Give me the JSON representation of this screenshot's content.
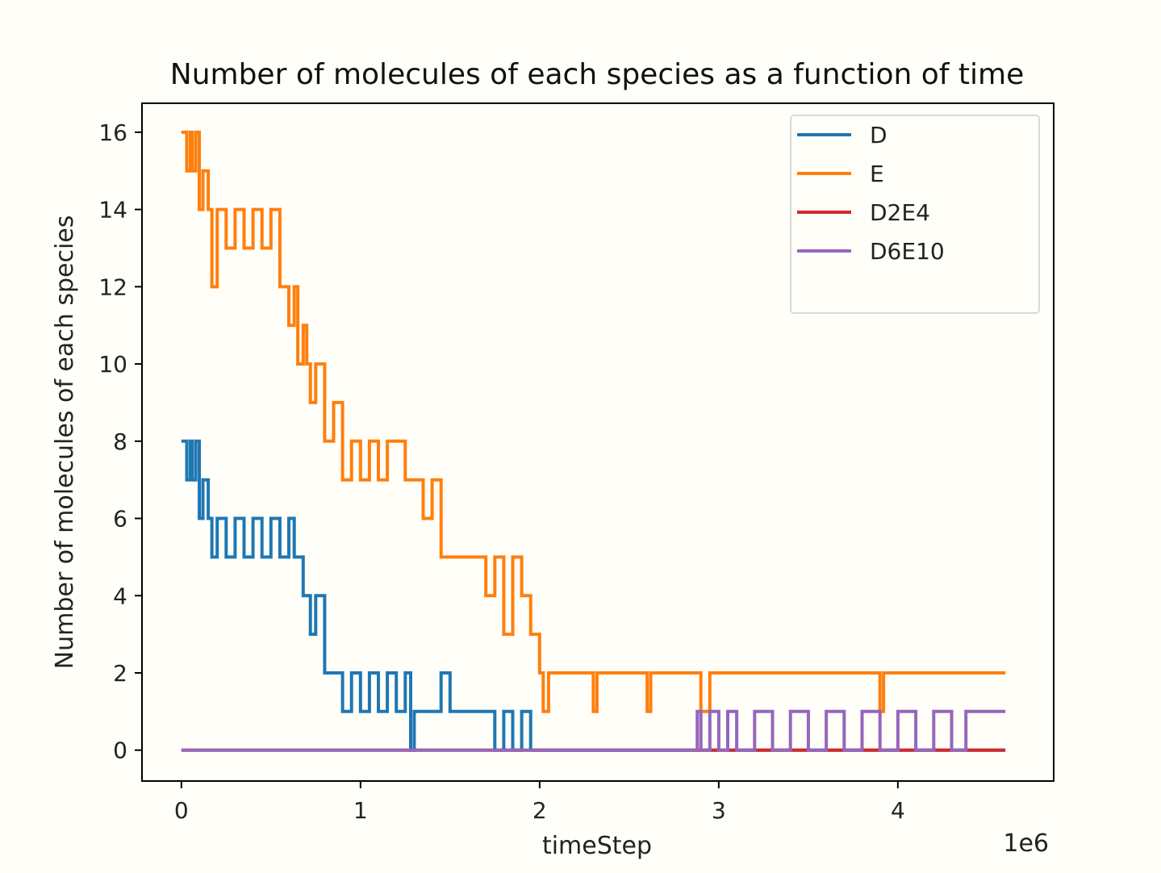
{
  "chart_data": {
    "type": "line",
    "title": "Number of molecules of each species as a function of time",
    "xlabel": "timeStep",
    "ylabel": "Number of molecules of each species",
    "x_offset_label": "1e6",
    "xlim": [
      -0.22,
      4.87
    ],
    "ylim": [
      -0.8,
      16.75
    ],
    "xticks": [
      0,
      1,
      2,
      3,
      4
    ],
    "xtick_labels": [
      "0",
      "1",
      "2",
      "3",
      "4"
    ],
    "yticks": [
      0,
      2,
      4,
      6,
      8,
      10,
      12,
      14,
      16
    ],
    "ytick_labels": [
      "0",
      "2",
      "4",
      "6",
      "8",
      "10",
      "12",
      "14",
      "16"
    ],
    "grid": false,
    "legend_position": "top-right",
    "series": [
      {
        "name": "D",
        "color": "#1f77b4",
        "x": [
          0,
          0.02,
          0.03,
          0.05,
          0.06,
          0.08,
          0.1,
          0.12,
          0.15,
          0.17,
          0.2,
          0.25,
          0.3,
          0.35,
          0.4,
          0.45,
          0.5,
          0.55,
          0.6,
          0.63,
          0.65,
          0.68,
          0.7,
          0.72,
          0.75,
          0.8,
          0.85,
          0.9,
          0.95,
          1.0,
          1.05,
          1.1,
          1.15,
          1.2,
          1.25,
          1.28,
          1.3,
          1.4,
          1.45,
          1.5,
          1.6,
          1.7,
          1.75,
          1.8,
          1.85,
          1.9,
          1.95,
          2.0,
          2.5,
          3.0,
          3.5,
          4.0,
          4.6
        ],
        "y": [
          8,
          8,
          7,
          8,
          7,
          8,
          6,
          7,
          6,
          5,
          6,
          5,
          6,
          5,
          6,
          5,
          6,
          5,
          6,
          5,
          5,
          4,
          4,
          3,
          4,
          2,
          2,
          1,
          2,
          1,
          2,
          1,
          2,
          1,
          2,
          0,
          1,
          1,
          2,
          1,
          1,
          1,
          0,
          1,
          0,
          1,
          0,
          0,
          0,
          0,
          0,
          0,
          0
        ]
      },
      {
        "name": "E",
        "color": "#ff7f0e",
        "x": [
          0,
          0.02,
          0.03,
          0.05,
          0.06,
          0.08,
          0.1,
          0.12,
          0.15,
          0.17,
          0.2,
          0.25,
          0.3,
          0.35,
          0.4,
          0.45,
          0.5,
          0.55,
          0.6,
          0.63,
          0.65,
          0.68,
          0.7,
          0.72,
          0.75,
          0.8,
          0.85,
          0.9,
          0.95,
          1.0,
          1.05,
          1.1,
          1.15,
          1.2,
          1.25,
          1.28,
          1.35,
          1.4,
          1.45,
          1.5,
          1.6,
          1.7,
          1.75,
          1.8,
          1.85,
          1.9,
          1.95,
          2.0,
          2.02,
          2.05,
          2.1,
          2.3,
          2.32,
          2.6,
          2.62,
          2.9,
          2.95,
          3.9,
          3.92,
          4.6
        ],
        "y": [
          16,
          16,
          15,
          16,
          15,
          16,
          14,
          15,
          14,
          12,
          14,
          13,
          14,
          13,
          14,
          13,
          14,
          12,
          11,
          12,
          10,
          11,
          10,
          9,
          10,
          8,
          9,
          7,
          8,
          7,
          8,
          7,
          8,
          8,
          7,
          7,
          6,
          7,
          5,
          5,
          5,
          4,
          5,
          3,
          5,
          4,
          3,
          2,
          1,
          2,
          2,
          1,
          2,
          1,
          2,
          1,
          2,
          1,
          2,
          2
        ]
      },
      {
        "name": "D2E4",
        "color": "#d62728",
        "x": [
          0,
          2.87,
          2.9,
          3.1,
          4.6
        ],
        "y": [
          0,
          0,
          0,
          0,
          0
        ]
      },
      {
        "name": "D6E10",
        "color": "#9467bd",
        "x": [
          0,
          1.28,
          2.87,
          2.88,
          2.9,
          2.95,
          3.0,
          3.05,
          3.1,
          3.2,
          3.3,
          3.4,
          3.5,
          3.6,
          3.7,
          3.8,
          3.9,
          4.0,
          4.1,
          4.2,
          4.3,
          4.38,
          4.4,
          4.6
        ],
        "y": [
          0,
          0,
          0,
          1,
          0,
          1,
          0,
          1,
          0,
          1,
          0,
          1,
          0,
          1,
          0,
          1,
          0,
          1,
          0,
          1,
          0,
          1,
          1,
          1
        ]
      }
    ]
  }
}
